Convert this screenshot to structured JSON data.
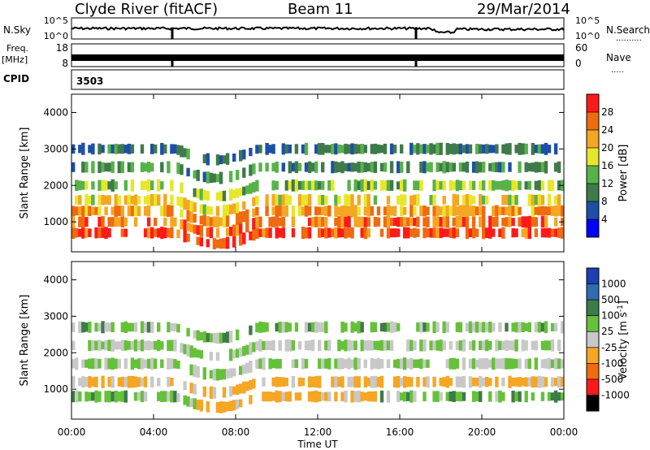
{
  "header": {
    "station": "Clyde River (fitACF)",
    "beam": "Beam 11",
    "date": "29/Mar/2014"
  },
  "sky_panel": {
    "left_label": "N.Sky",
    "right_label": "N.Search",
    "left_ticks": [
      "10^5",
      "10^0"
    ],
    "right_ticks": [
      "10^5",
      "10^0"
    ]
  },
  "freq_panel": {
    "left_label_1": "Freq.",
    "left_label_2": "[MHz]",
    "right_label": "Nave",
    "left_ticks": [
      "18",
      "8"
    ],
    "right_ticks": [
      "60",
      "0"
    ]
  },
  "cpid": {
    "label": "CPID",
    "value": "3503"
  },
  "colors": {
    "scale": [
      "#0000ff",
      "#1e4fa8",
      "#3f7a4a",
      "#58b24a",
      "#e6e62b",
      "#f5a623",
      "#f06a10",
      "#ff1a1a"
    ],
    "ground_scatter": "#c8c8c8"
  },
  "chart_data": [
    {
      "type": "heatmap",
      "title": "Power",
      "xlabel": "",
      "ylabel": "Slant Range [km]",
      "x_ticks": [
        "00:00",
        "04:00",
        "08:00",
        "12:00",
        "16:00",
        "20:00",
        "00:00"
      ],
      "xlim_hours": [
        0,
        24
      ],
      "y_ticks": [
        1000,
        2000,
        3000,
        4000
      ],
      "ylim": [
        180,
        4500
      ],
      "colorbar": {
        "label": "Power [dB]",
        "ticks": [
          "28",
          "24",
          "20",
          "16",
          "12",
          "8",
          "4"
        ],
        "range": [
          0,
          30
        ]
      },
      "description_rows": [
        {
          "range_km": 700,
          "value": 26
        },
        {
          "range_km": 1000,
          "value": 24
        },
        {
          "range_km": 1300,
          "value": 22
        },
        {
          "range_km": 1600,
          "value": 18
        },
        {
          "range_km": 2000,
          "value": 14
        },
        {
          "range_km": 2500,
          "value": 10
        },
        {
          "range_km": 3000,
          "value": 8
        }
      ]
    },
    {
      "type": "heatmap",
      "title": "Velocity",
      "xlabel": "Time UT",
      "ylabel": "Slant Range [km]",
      "x_ticks": [
        "00:00",
        "04:00",
        "08:00",
        "12:00",
        "16:00",
        "20:00",
        "00:00"
      ],
      "xlim_hours": [
        0,
        24
      ],
      "y_ticks": [
        1000,
        2000,
        3000,
        4000
      ],
      "ylim": [
        180,
        4500
      ],
      "colorbar": {
        "label": "Velocity [m s",
        "label_sup": "-1",
        "label_end": "]",
        "ticks": [
          "1000",
          "500",
          "100",
          "25",
          "-25",
          "-100",
          "-500",
          "-1000"
        ],
        "range": [
          -1000,
          1000
        ]
      },
      "description_rows": [
        {
          "range_km": 800,
          "value": 150
        },
        {
          "range_km": 1200,
          "value": -300
        },
        {
          "range_km": 1700,
          "value": 0
        },
        {
          "range_km": 2200,
          "value": 0
        },
        {
          "range_km": 2700,
          "value": 100
        }
      ]
    }
  ]
}
